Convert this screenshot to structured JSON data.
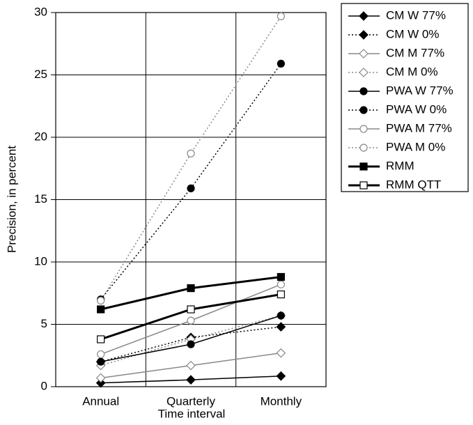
{
  "chart_data": {
    "type": "line",
    "x_label": "Time interval",
    "y_label": "Precision, in percent",
    "categories": [
      "Annual",
      "Quarterly",
      "Monthly"
    ],
    "ylim": [
      0,
      30
    ],
    "yticks": [
      0,
      5,
      10,
      15,
      20,
      25,
      30
    ],
    "grid": true,
    "legend": "right",
    "series": [
      {
        "name": "CM W 77%",
        "color": "#000000",
        "line_style": "solid",
        "line_width": 1.5,
        "marker": "diamond",
        "marker_fill": true,
        "values": [
          0.3,
          0.55,
          0.85
        ]
      },
      {
        "name": "CM W 0%",
        "color": "#000000",
        "line_style": "dotted",
        "line_width": 1.5,
        "marker": "diamond",
        "marker_fill": true,
        "values": [
          2.0,
          3.95,
          4.8
        ]
      },
      {
        "name": "CM M 77%",
        "color": "#888888",
        "line_style": "solid",
        "line_width": 1.5,
        "marker": "diamond",
        "marker_fill": false,
        "values": [
          0.7,
          1.7,
          2.7
        ]
      },
      {
        "name": "CM M 0%",
        "color": "#888888",
        "line_style": "dotted",
        "line_width": 1.5,
        "marker": "diamond",
        "marker_fill": false,
        "values": [
          1.7,
          3.8,
          5.7
        ]
      },
      {
        "name": "PWA W 77%",
        "color": "#000000",
        "line_style": "solid",
        "line_width": 1.5,
        "marker": "circle",
        "marker_fill": true,
        "values": [
          2.0,
          3.4,
          5.7
        ]
      },
      {
        "name": "PWA W 0%",
        "color": "#000000",
        "line_style": "dotted",
        "line_width": 1.5,
        "marker": "circle",
        "marker_fill": true,
        "values": [
          7.0,
          15.9,
          25.9
        ]
      },
      {
        "name": "PWA M 77%",
        "color": "#888888",
        "line_style": "solid",
        "line_width": 1.5,
        "marker": "circle",
        "marker_fill": false,
        "values": [
          2.6,
          5.3,
          8.2
        ]
      },
      {
        "name": "PWA M 0%",
        "color": "#888888",
        "line_style": "dotted",
        "line_width": 1.5,
        "marker": "circle",
        "marker_fill": false,
        "values": [
          6.9,
          18.7,
          29.7
        ]
      },
      {
        "name": "RMM",
        "color": "#000000",
        "line_style": "solid",
        "line_width": 3,
        "marker": "square",
        "marker_fill": true,
        "values": [
          6.2,
          7.9,
          8.8
        ]
      },
      {
        "name": "RMM QTT",
        "color": "#000000",
        "line_style": "solid",
        "line_width": 3,
        "marker": "square",
        "marker_fill": false,
        "values": [
          3.8,
          6.2,
          7.4
        ]
      }
    ]
  }
}
